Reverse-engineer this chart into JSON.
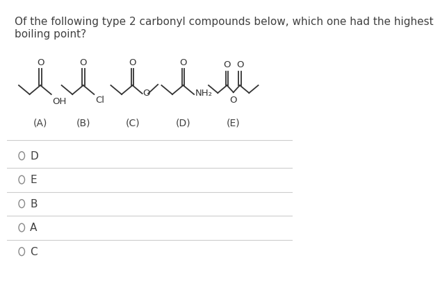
{
  "title_line1": "Of the following type 2 carbonyl compounds below, which one had the highest",
  "title_line2": "boiling point?",
  "compounds": [
    "(A)",
    "(B)",
    "(C)",
    "(D)",
    "(E)"
  ],
  "answer_options": [
    "D",
    "E",
    "B",
    "A",
    "C"
  ],
  "bg_color": "#ffffff",
  "text_color": "#404040",
  "line_color": "#cccccc",
  "struct_color": "#333333",
  "font_size_title": 11,
  "font_size_struct": 9.5,
  "font_size_label": 10,
  "font_size_answer": 11
}
